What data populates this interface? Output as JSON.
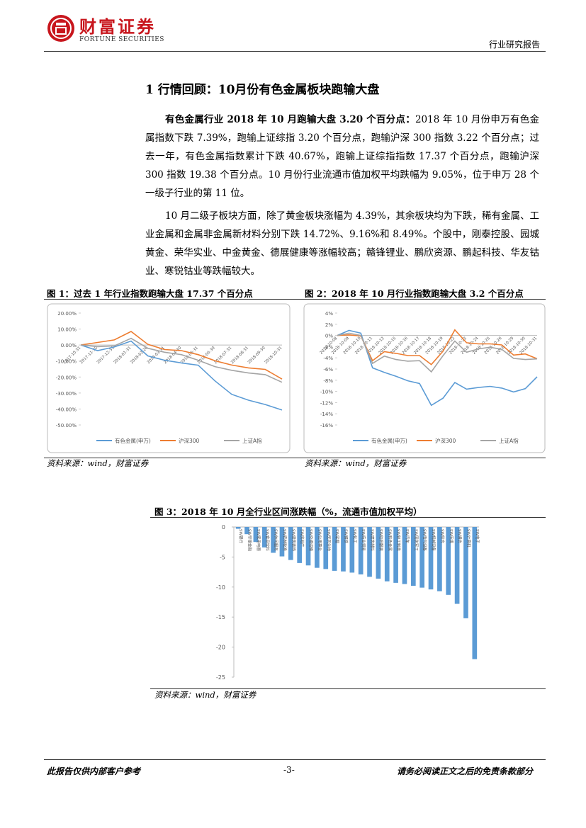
{
  "header": {
    "logo_cn": "财富证券",
    "logo_en": "FORTUNE SECURITIES",
    "report_type": "行业研究报告"
  },
  "section_title": "1  行情回顾：10月份有色金属板块跑输大盘",
  "paragraphs": [
    {
      "lead": "有色金属行业 2018 年 10 月跑输大盘 3.20 个百分点：",
      "text": "2018 年 10 月份申万有色金属指数下跌 7.39%，跑输上证综指 3.20 个百分点，跑输沪深 300 指数 3.22 个百分点；过去一年，有色金属指数累计下跌 40.67%，跑输上证综指指数 17.37 个百分点，跑输沪深 300 指数 19.38 个百分点。10 月份行业流通市值加权平均跌幅为 9.05%，位于申万 28 个一级子行业的第 11 位。"
    },
    {
      "text": "10 月二级子板块方面，除了黄金板块涨幅为 4.39%，其余板块均为下跌，稀有金属、工业金属和金属非金属新材料分别下跌 14.72%、9.16%和 8.49%。个股中，刚泰控股、园城黄金、荣华实业、中金黄金、德展健康等涨幅较高；赣锋锂业、鹏欣资源、鹏起科技、华友钴业、寒锐钴业等跌幅较大。"
    }
  ],
  "chart_data": [
    {
      "type": "line",
      "title": "图 1：过去 1 年行业指数跑输大盘 17.37 个百分点",
      "source": "资料来源：wind，财富证券",
      "categories": [
        "2017-10-31",
        "2017-11-30",
        "2017-12-31",
        "2018-01-31",
        "2018-02-28",
        "2018-03-31",
        "2018-04-30",
        "2018-05-31",
        "2018-06-30",
        "2018-07-31",
        "2018-08-31",
        "2018-09-30",
        "2018-10-31"
      ],
      "series": [
        {
          "name": "有色金属(申万)",
          "color": "#5b9bd5",
          "values": [
            0,
            -3.5,
            -1.2,
            2.5,
            -6.8,
            -9.5,
            -11.2,
            -12.6,
            -22.4,
            -30.8,
            -34.5,
            -37.2,
            -40.67
          ]
        },
        {
          "name": "沪深300",
          "color": "#ed7d31",
          "values": [
            0,
            1.6,
            3.2,
            8.5,
            0.4,
            -2.8,
            -3.5,
            -6.0,
            -9.8,
            -12.5,
            -14.3,
            -15.2,
            -21.29
          ]
        },
        {
          "name": "上证A指",
          "color": "#a5a5a5",
          "values": [
            0,
            -1.0,
            -0.5,
            4.2,
            -2.0,
            -4.5,
            -6.0,
            -9.5,
            -13.5,
            -15.8,
            -17.5,
            -18.5,
            -23.3
          ]
        }
      ],
      "ylim": [
        -50,
        20
      ],
      "yticks": [
        {
          "value": 20,
          "label": "20.00%"
        },
        {
          "value": 10,
          "label": "10.00%"
        },
        {
          "value": 0,
          "label": "0.00%"
        },
        {
          "value": -10,
          "label": "-10.00%"
        },
        {
          "value": -20,
          "label": "-20.00%"
        },
        {
          "value": -30,
          "label": "-30.00%"
        },
        {
          "value": -40,
          "label": "-40.00%"
        },
        {
          "value": -50,
          "label": "-50.00%"
        }
      ],
      "grid": false,
      "legend": "bottom"
    },
    {
      "type": "line",
      "title": "图 2：2018 年 10 月行业指数跑输大盘 3.2 个百分点",
      "source": "资料来源：wind，财富证券",
      "categories": [
        "2018-10-08",
        "2018-10-09",
        "2018-10-10",
        "2018-10-11",
        "2018-10-12",
        "2018-10-15",
        "2018-10-16",
        "2018-10-17",
        "2018-10-18",
        "2018-10-19",
        "2018-10-22",
        "2018-10-23",
        "2018-10-24",
        "2018-10-25",
        "2018-10-26",
        "2018-10-29",
        "2018-10-30",
        "2018-10-31"
      ],
      "series": [
        {
          "name": "有色金属(申万)",
          "color": "#5b9bd5",
          "values": [
            0,
            0.9,
            0.4,
            -5.8,
            -6.6,
            -7.3,
            -8.1,
            -8.6,
            -12.5,
            -11.2,
            -8.4,
            -9.6,
            -9.3,
            -9.1,
            -9.4,
            -10.1,
            -9.5,
            -7.39
          ]
        },
        {
          "name": "沪深300",
          "color": "#ed7d31",
          "values": [
            0,
            0.1,
            -0.1,
            -4.5,
            -2.9,
            -3.2,
            -3.6,
            -3.6,
            -5.2,
            -2.8,
            1.0,
            -1.3,
            -1.5,
            -1.5,
            -1.7,
            -3.5,
            -3.3,
            -4.17
          ]
        },
        {
          "name": "上证A指",
          "color": "#a5a5a5",
          "values": [
            0,
            0.4,
            0.0,
            -5.0,
            -3.7,
            -4.3,
            -4.6,
            -4.5,
            -6.5,
            -3.6,
            -1.0,
            -3.0,
            -2.4,
            -2.1,
            -2.5,
            -4.1,
            -4.3,
            -4.19
          ]
        }
      ],
      "ylim": [
        -16,
        4
      ],
      "yticks": [
        {
          "value": 4,
          "label": "4%"
        },
        {
          "value": 2,
          "label": "2%"
        },
        {
          "value": 0,
          "label": "0%"
        },
        {
          "value": -2,
          "label": "-2%"
        },
        {
          "value": -4,
          "label": "-4%"
        },
        {
          "value": -6,
          "label": "-6%"
        },
        {
          "value": -8,
          "label": "-8%"
        },
        {
          "value": -10,
          "label": "-10%"
        },
        {
          "value": -12,
          "label": "-12%"
        },
        {
          "value": -14,
          "label": "-14%"
        },
        {
          "value": -16,
          "label": "-16%"
        }
      ],
      "grid": false,
      "legend": "bottom"
    },
    {
      "type": "bar",
      "title": "图 3：2018 年 10 月全行业区间涨跌幅（%，流通市值加权平均）",
      "source": "资料来源：wind，财富证券",
      "categories": [
        "SW银行",
        "SW非银金融",
        "SW家用电器",
        "SW食品饮料",
        "SW休闲服务",
        "SW农林牧渔",
        "SW建筑装饰",
        "SW房地产",
        "SW交通运输",
        "SW公用事业",
        "SW医药生物",
        "SW采掘",
        "SW钢铁",
        "SW化工",
        "SW商业贸易",
        "SW建筑材料",
        "SW纺织服装",
        "SW有色金属",
        "SW轻工制造",
        "SW汽车",
        "SW国防军工",
        "SW电气设备",
        "SW机械设备",
        "SW综合",
        "SW传媒",
        "SW通信",
        "SW计算机",
        "SW电子"
      ],
      "values": [
        -0.3,
        -1.2,
        -2.5,
        -3.4,
        -4.3,
        -4.9,
        -5.5,
        -6.0,
        -6.4,
        -6.8,
        -7.0,
        -7.3,
        -7.4,
        -7.6,
        -7.9,
        -8.3,
        -8.6,
        -9.05,
        -9.3,
        -9.5,
        -9.8,
        -10.1,
        -10.4,
        -10.7,
        -11.3,
        -12.8,
        -15.2,
        -22.0
      ],
      "color": "#5b9bd5",
      "ylim": [
        -25,
        0
      ],
      "yticks": [
        0,
        -5,
        -10,
        -15,
        -20,
        -25
      ],
      "grid": false
    }
  ],
  "footer": {
    "left": "此报告仅供内部客户参考",
    "page": "-3-",
    "right": "请务必阅读正文之后的免责条款部分"
  }
}
